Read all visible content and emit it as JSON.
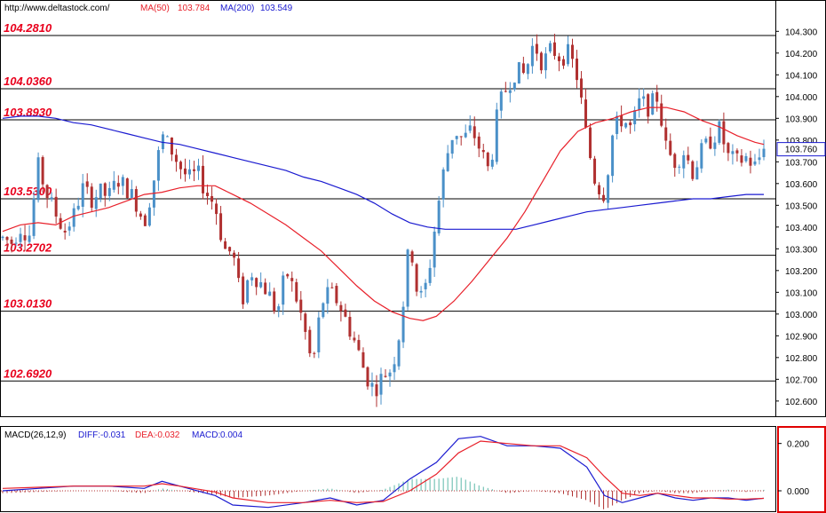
{
  "header": {
    "url": "http://www.deltastock.com/",
    "ma50_label": "MA(50)",
    "ma50_value": "103.784",
    "ma200_label": "MA(200)",
    "ma200_value": "103.549"
  },
  "macd_header": {
    "name": "MACD(26,12,9)",
    "diff_label": "DIFF:",
    "diff_value": "-0.031",
    "dea_label": "DEA:",
    "dea_value": "-0.032",
    "macd_label": "MACD:",
    "macd_value": "0.004"
  },
  "last_price_label": "103.760",
  "colors": {
    "up": "#4a90c8",
    "down": "#b03030",
    "ma50": "#e8202a",
    "ma200": "#1a1ad0",
    "level_text": "#e8001c",
    "diff_line": "#1a1ad0",
    "dea_line": "#e8202a",
    "hist_pos": "#5bb8a8",
    "hist_neg": "#b03030",
    "macd_axis_border": "#e00000"
  },
  "chart_data": [
    {
      "type": "candlestick",
      "title": "",
      "xlabel": "",
      "ylabel": "",
      "ylim": [
        102.53,
        104.44
      ],
      "yticks": [
        "104.300",
        "104.200",
        "104.100",
        "104.000",
        "103.900",
        "103.800",
        "103.700",
        "103.600",
        "103.500",
        "103.400",
        "103.300",
        "103.200",
        "103.100",
        "103.000",
        "102.900",
        "102.800",
        "102.700",
        "102.600"
      ],
      "levels": [
        {
          "label": "104.2810",
          "value": 104.281
        },
        {
          "label": "104.0360",
          "value": 104.036
        },
        {
          "label": "103.8930",
          "value": 103.893
        },
        {
          "label": "103.5300",
          "value": 103.53
        },
        {
          "label": "103.2702",
          "value": 103.2702
        },
        {
          "label": "103.0130",
          "value": 103.013
        },
        {
          "label": "102.6920",
          "value": 102.692
        }
      ],
      "series": [
        {
          "name": "MA(50)",
          "values": [
            [
              0,
              103.38
            ],
            [
              20,
              103.41
            ],
            [
              40,
              103.42
            ],
            [
              60,
              103.41
            ],
            [
              80,
              103.45
            ],
            [
              100,
              103.47
            ],
            [
              120,
              103.49
            ],
            [
              140,
              103.52
            ],
            [
              160,
              103.55
            ],
            [
              180,
              103.56
            ],
            [
              200,
              103.58
            ],
            [
              220,
              103.59
            ],
            [
              240,
              103.59
            ],
            [
              260,
              103.55
            ],
            [
              280,
              103.51
            ],
            [
              300,
              103.46
            ],
            [
              320,
              103.41
            ],
            [
              340,
              103.35
            ],
            [
              360,
              103.29
            ],
            [
              380,
              103.21
            ],
            [
              400,
              103.13
            ],
            [
              420,
              103.06
            ],
            [
              440,
              103.01
            ],
            [
              460,
              102.98
            ],
            [
              475,
              102.97
            ],
            [
              490,
              102.99
            ],
            [
              510,
              103.06
            ],
            [
              530,
              103.15
            ],
            [
              550,
              103.25
            ],
            [
              570,
              103.35
            ],
            [
              590,
              103.47
            ],
            [
              610,
              103.61
            ],
            [
              630,
              103.75
            ],
            [
              650,
              103.84
            ],
            [
              670,
              103.88
            ],
            [
              690,
              103.9
            ],
            [
              710,
              103.93
            ],
            [
              730,
              103.95
            ],
            [
              750,
              103.95
            ],
            [
              770,
              103.93
            ],
            [
              790,
              103.89
            ],
            [
              810,
              103.86
            ],
            [
              830,
              103.82
            ],
            [
              850,
              103.79
            ],
            [
              860,
              103.78
            ]
          ]
        },
        {
          "name": "MA(200)",
          "values": [
            [
              0,
              103.9
            ],
            [
              20,
              103.91
            ],
            [
              40,
              103.91
            ],
            [
              60,
              103.9
            ],
            [
              80,
              103.88
            ],
            [
              100,
              103.87
            ],
            [
              120,
              103.85
            ],
            [
              140,
              103.83
            ],
            [
              160,
              103.81
            ],
            [
              180,
              103.79
            ],
            [
              200,
              103.78
            ],
            [
              220,
              103.76
            ],
            [
              240,
              103.74
            ],
            [
              260,
              103.72
            ],
            [
              280,
              103.7
            ],
            [
              300,
              103.68
            ],
            [
              320,
              103.66
            ],
            [
              340,
              103.63
            ],
            [
              360,
              103.61
            ],
            [
              380,
              103.58
            ],
            [
              400,
              103.55
            ],
            [
              420,
              103.51
            ],
            [
              440,
              103.46
            ],
            [
              460,
              103.42
            ],
            [
              480,
              103.4
            ],
            [
              500,
              103.39
            ],
            [
              520,
              103.39
            ],
            [
              540,
              103.39
            ],
            [
              560,
              103.39
            ],
            [
              580,
              103.39
            ],
            [
              600,
              103.41
            ],
            [
              620,
              103.43
            ],
            [
              640,
              103.45
            ],
            [
              660,
              103.47
            ],
            [
              680,
              103.48
            ],
            [
              700,
              103.49
            ],
            [
              720,
              103.5
            ],
            [
              740,
              103.51
            ],
            [
              760,
              103.52
            ],
            [
              780,
              103.53
            ],
            [
              800,
              103.53
            ],
            [
              820,
              103.54
            ],
            [
              840,
              103.55
            ],
            [
              860,
              103.55
            ]
          ]
        }
      ],
      "candle_path": [
        [
          0,
          103.35
        ],
        [
          10,
          103.33
        ],
        [
          20,
          103.4
        ],
        [
          30,
          103.36
        ],
        [
          40,
          103.68
        ],
        [
          50,
          103.55
        ],
        [
          60,
          103.46
        ],
        [
          70,
          103.38
        ],
        [
          80,
          103.45
        ],
        [
          90,
          103.58
        ],
        [
          100,
          103.53
        ],
        [
          110,
          103.56
        ],
        [
          120,
          103.54
        ],
        [
          130,
          103.62
        ],
        [
          140,
          103.58
        ],
        [
          150,
          103.52
        ],
        [
          160,
          103.42
        ],
        [
          170,
          103.6
        ],
        [
          180,
          103.82
        ],
        [
          190,
          103.76
        ],
        [
          200,
          103.68
        ],
        [
          210,
          103.62
        ],
        [
          220,
          103.65
        ],
        [
          230,
          103.56
        ],
        [
          240,
          103.5
        ],
        [
          250,
          103.3
        ],
        [
          260,
          103.28
        ],
        [
          270,
          103.05
        ],
        [
          280,
          103.2
        ],
        [
          290,
          103.15
        ],
        [
          300,
          103.1
        ],
        [
          310,
          103.0
        ],
        [
          320,
          103.2
        ],
        [
          330,
          103.1
        ],
        [
          340,
          102.95
        ],
        [
          350,
          102.75
        ],
        [
          360,
          103.05
        ],
        [
          370,
          103.1
        ],
        [
          380,
          103.05
        ],
        [
          390,
          102.95
        ],
        [
          400,
          102.85
        ],
        [
          410,
          102.72
        ],
        [
          420,
          102.65
        ],
        [
          430,
          102.72
        ],
        [
          440,
          102.75
        ],
        [
          450,
          102.95
        ],
        [
          460,
          103.35
        ],
        [
          470,
          103.05
        ],
        [
          480,
          103.15
        ],
        [
          490,
          103.45
        ],
        [
          500,
          103.7
        ],
        [
          510,
          103.85
        ],
        [
          520,
          103.8
        ],
        [
          530,
          103.85
        ],
        [
          540,
          103.75
        ],
        [
          550,
          103.65
        ],
        [
          560,
          103.95
        ],
        [
          570,
          104.05
        ],
        [
          580,
          104.12
        ],
        [
          590,
          104.1
        ],
        [
          600,
          104.25
        ],
        [
          610,
          104.15
        ],
        [
          620,
          104.22
        ],
        [
          630,
          104.18
        ],
        [
          640,
          104.2
        ],
        [
          650,
          104.08
        ],
        [
          660,
          103.8
        ],
        [
          670,
          103.6
        ],
        [
          680,
          103.55
        ],
        [
          690,
          103.85
        ],
        [
          700,
          103.9
        ],
        [
          710,
          103.85
        ],
        [
          720,
          103.98
        ],
        [
          730,
          103.95
        ],
        [
          740,
          104.0
        ],
        [
          750,
          103.75
        ],
        [
          760,
          103.7
        ],
        [
          770,
          103.75
        ],
        [
          780,
          103.65
        ],
        [
          790,
          103.75
        ],
        [
          800,
          103.8
        ],
        [
          810,
          103.85
        ],
        [
          820,
          103.72
        ],
        [
          830,
          103.7
        ],
        [
          840,
          103.72
        ],
        [
          850,
          103.68
        ],
        [
          860,
          103.76
        ]
      ],
      "last_price": 103.76
    },
    {
      "type": "line",
      "title": "MACD(26,12,9)",
      "ylim": [
        -0.09,
        0.27
      ],
      "yticks": [
        "0.200",
        "0.000"
      ],
      "series": [
        {
          "name": "DIFF",
          "values": [
            [
              0,
              0.0
            ],
            [
              40,
              0.01
            ],
            [
              80,
              0.02
            ],
            [
              120,
              0.02
            ],
            [
              160,
              0.01
            ],
            [
              180,
              0.04
            ],
            [
              200,
              0.02
            ],
            [
              240,
              -0.02
            ],
            [
              260,
              -0.06
            ],
            [
              300,
              -0.07
            ],
            [
              340,
              -0.05
            ],
            [
              370,
              -0.03
            ],
            [
              400,
              -0.06
            ],
            [
              430,
              -0.04
            ],
            [
              460,
              0.05
            ],
            [
              490,
              0.12
            ],
            [
              515,
              0.22
            ],
            [
              540,
              0.23
            ],
            [
              570,
              0.19
            ],
            [
              600,
              0.19
            ],
            [
              630,
              0.18
            ],
            [
              660,
              0.1
            ],
            [
              680,
              -0.02
            ],
            [
              700,
              -0.05
            ],
            [
              720,
              -0.03
            ],
            [
              740,
              -0.01
            ],
            [
              760,
              -0.03
            ],
            [
              780,
              -0.04
            ],
            [
              800,
              -0.03
            ],
            [
              820,
              -0.03
            ],
            [
              840,
              -0.04
            ],
            [
              860,
              -0.031
            ]
          ]
        },
        {
          "name": "DEA",
          "values": [
            [
              0,
              0.01
            ],
            [
              40,
              0.015
            ],
            [
              80,
              0.02
            ],
            [
              120,
              0.02
            ],
            [
              160,
              0.02
            ],
            [
              180,
              0.03
            ],
            [
              200,
              0.02
            ],
            [
              240,
              -0.005
            ],
            [
              260,
              -0.03
            ],
            [
              300,
              -0.05
            ],
            [
              340,
              -0.05
            ],
            [
              370,
              -0.04
            ],
            [
              400,
              -0.05
            ],
            [
              430,
              -0.045
            ],
            [
              460,
              0.0
            ],
            [
              490,
              0.07
            ],
            [
              515,
              0.16
            ],
            [
              540,
              0.21
            ],
            [
              570,
              0.2
            ],
            [
              600,
              0.19
            ],
            [
              630,
              0.19
            ],
            [
              660,
              0.14
            ],
            [
              680,
              0.06
            ],
            [
              700,
              -0.01
            ],
            [
              720,
              -0.02
            ],
            [
              740,
              -0.01
            ],
            [
              760,
              -0.02
            ],
            [
              780,
              -0.03
            ],
            [
              800,
              -0.03
            ],
            [
              820,
              -0.035
            ],
            [
              840,
              -0.035
            ],
            [
              860,
              -0.032
            ]
          ]
        },
        {
          "name": "MACD",
          "values": [
            [
              0,
              -0.01
            ],
            [
              40,
              -0.005
            ],
            [
              80,
              0.0
            ],
            [
              120,
              0.0
            ],
            [
              160,
              -0.01
            ],
            [
              180,
              0.01
            ],
            [
              200,
              0.0
            ],
            [
              240,
              -0.015
            ],
            [
              260,
              -0.03
            ],
            [
              300,
              -0.02
            ],
            [
              340,
              0.0
            ],
            [
              370,
              0.01
            ],
            [
              400,
              -0.01
            ],
            [
              430,
              0.005
            ],
            [
              460,
              0.05
            ],
            [
              490,
              0.05
            ],
            [
              515,
              0.06
            ],
            [
              540,
              0.02
            ],
            [
              570,
              -0.01
            ],
            [
              600,
              0.0
            ],
            [
              630,
              -0.01
            ],
            [
              660,
              -0.04
            ],
            [
              680,
              -0.08
            ],
            [
              700,
              -0.04
            ],
            [
              720,
              -0.01
            ],
            [
              740,
              0.0
            ],
            [
              760,
              -0.01
            ],
            [
              780,
              -0.01
            ],
            [
              800,
              0.0
            ],
            [
              820,
              0.005
            ],
            [
              840,
              -0.005
            ],
            [
              860,
              0.004
            ]
          ]
        }
      ]
    }
  ]
}
